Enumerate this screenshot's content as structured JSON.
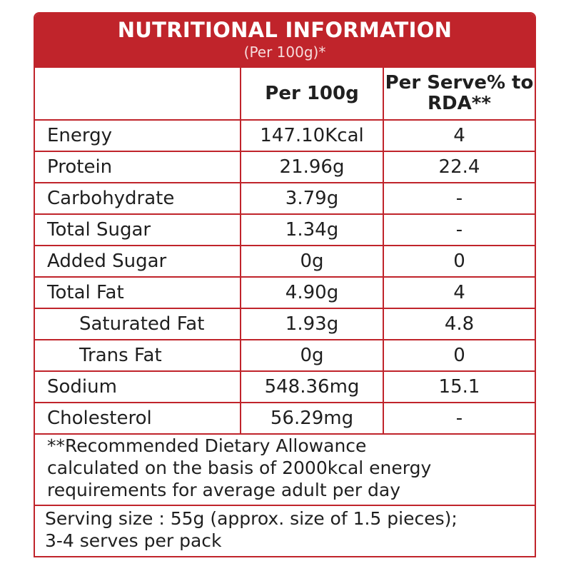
{
  "header": {
    "title": "NUTRITIONAL INFORMATION",
    "subtitle": "(Per 100g)*"
  },
  "table": {
    "columns": [
      "",
      "Per 100g",
      "Per Serve% to RDA**"
    ],
    "rows": [
      {
        "name": "Energy",
        "per100g": "147.10Kcal",
        "rda": "4",
        "indent": false
      },
      {
        "name": "Protein",
        "per100g": "21.96g",
        "rda": "22.4",
        "indent": false
      },
      {
        "name": "Carbohydrate",
        "per100g": "3.79g",
        "rda": "-",
        "indent": false
      },
      {
        "name": "Total Sugar",
        "per100g": "1.34g",
        "rda": "-",
        "indent": false
      },
      {
        "name": "Added Sugar",
        "per100g": "0g",
        "rda": "0",
        "indent": false
      },
      {
        "name": "Total Fat",
        "per100g": "4.90g",
        "rda": "4",
        "indent": false
      },
      {
        "name": "Saturated Fat",
        "per100g": "1.93g",
        "rda": "4.8",
        "indent": true
      },
      {
        "name": "Trans Fat",
        "per100g": "0g",
        "rda": "0",
        "indent": true
      },
      {
        "name": "Sodium",
        "per100g": "548.36mg",
        "rda": "15.1",
        "indent": false
      },
      {
        "name": "Cholesterol",
        "per100g": "56.29mg",
        "rda": "-",
        "indent": false
      }
    ]
  },
  "footnote": {
    "lines": [
      "**Recommended Dietary Allowance",
      "calculated on the basis of 2000kcal energy",
      "requirements for average adult per day"
    ]
  },
  "serving": {
    "lines": [
      "Serving size : 55g (approx. size of 1.5 pieces);",
      "3-4 serves per pack"
    ]
  },
  "colors": {
    "accent": "#c0242b"
  }
}
